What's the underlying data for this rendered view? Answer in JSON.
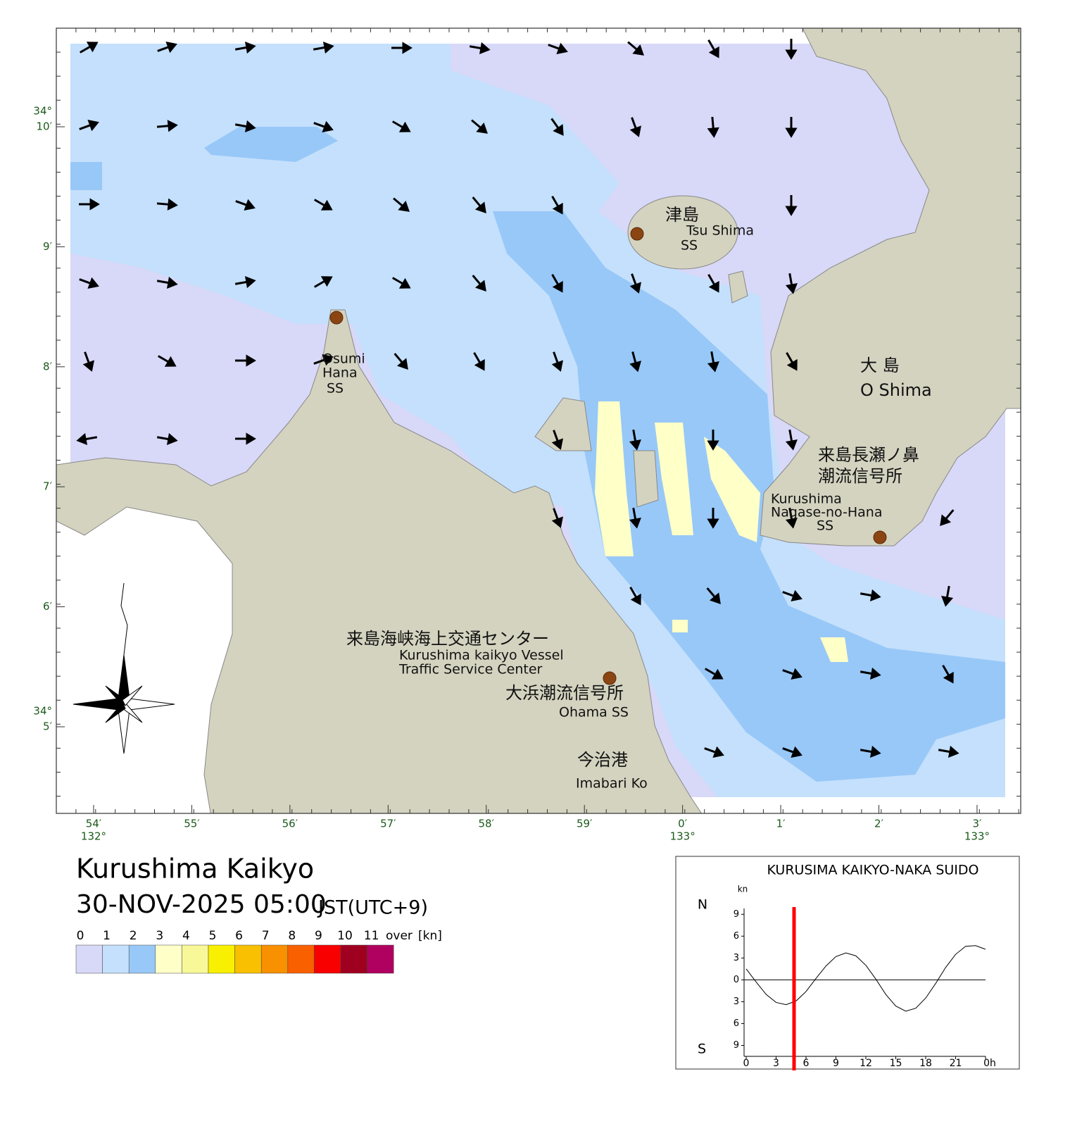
{
  "map": {
    "title": "Kurushima Kaikyo",
    "datetime": "30-NOV-2025 05:00",
    "timezone": "JST(UTC+9)",
    "lon_labels": [
      "54′",
      "55′",
      "56′",
      "57′",
      "58′",
      "59′",
      "0′",
      "1′",
      "2′",
      "3′"
    ],
    "lon_degree_labels": [
      "132°",
      null,
      null,
      null,
      null,
      null,
      "133°",
      null,
      null,
      "133°"
    ],
    "lat_labels": [
      "10′",
      "9′",
      "8′",
      "7′",
      "6′",
      "5′"
    ],
    "lat_degree_labels": [
      "34°",
      null,
      null,
      null,
      null,
      "34°"
    ],
    "places": [
      {
        "lines": [
          "津島",
          "Tsu Shima",
          "SS"
        ]
      },
      {
        "lines": [
          "Osumi",
          "Hana",
          "SS"
        ]
      },
      {
        "lines": [
          "大 島",
          "O Shima"
        ]
      },
      {
        "lines": [
          "来島長瀬ノ鼻",
          "潮流信号所",
          "Kurushima",
          "Nagase-no-Hana",
          "SS"
        ]
      },
      {
        "lines": [
          "来島海峡海上交通センター",
          "Kurushima kaikyo Vessel",
          "Traffic Service Center"
        ]
      },
      {
        "lines": [
          "大浜潮流信号所",
          "Ohama SS"
        ]
      },
      {
        "lines": [
          "今治港",
          "Imabari Ko"
        ]
      }
    ],
    "current_directions_deg": [
      [
        60,
        70,
        80,
        80,
        90,
        100,
        110,
        130,
        150,
        180,
        null,
        null
      ],
      [
        70,
        85,
        100,
        110,
        120,
        130,
        145,
        160,
        175,
        180,
        null,
        null
      ],
      [
        90,
        95,
        110,
        120,
        130,
        140,
        150,
        null,
        null,
        180,
        null,
        null
      ],
      [
        110,
        100,
        80,
        60,
        120,
        140,
        150,
        160,
        150,
        170,
        null,
        null
      ],
      [
        160,
        120,
        90,
        70,
        140,
        150,
        160,
        165,
        170,
        150,
        null,
        null
      ],
      [
        260,
        100,
        90,
        null,
        null,
        null,
        160,
        170,
        180,
        170,
        null,
        null
      ],
      [
        null,
        null,
        null,
        null,
        null,
        null,
        160,
        170,
        180,
        170,
        null,
        220
      ],
      [
        null,
        null,
        null,
        null,
        null,
        null,
        null,
        150,
        140,
        110,
        100,
        190
      ],
      [
        null,
        null,
        null,
        null,
        null,
        null,
        null,
        null,
        120,
        110,
        100,
        150
      ],
      [
        null,
        null,
        null,
        null,
        null,
        null,
        null,
        null,
        110,
        110,
        100,
        100
      ]
    ],
    "legend": {
      "ticks": [
        0,
        1,
        2,
        3,
        4,
        5,
        6,
        7,
        8,
        9,
        10,
        11
      ],
      "over_label": "over",
      "unit": "[kn]",
      "colors": [
        "#d8d8f8",
        "#c4e0fc",
        "#98c8f8",
        "#ffffc8",
        "#f8f898",
        "#f8f000",
        "#f8c000",
        "#f89000",
        "#f86000",
        "#f80000",
        "#a00020",
        "#b00060"
      ]
    }
  },
  "chart_data": {
    "type": "line",
    "title": "KURUSIMA KAIKYO-NAKA SUIDO",
    "y_unit": "kn",
    "north_label": "N",
    "south_label": "S",
    "x": [
      0,
      1,
      2,
      3,
      4,
      5,
      6,
      7,
      8,
      9,
      10,
      11,
      12,
      13,
      14,
      15,
      16,
      17,
      18,
      19,
      20,
      21,
      22,
      23,
      24
    ],
    "values": [
      1.5,
      -0.3,
      -2.0,
      -3.1,
      -3.4,
      -2.9,
      -1.6,
      0.2,
      1.9,
      3.2,
      3.7,
      3.3,
      2.0,
      0.1,
      -2.0,
      -3.6,
      -4.3,
      -3.9,
      -2.5,
      -0.5,
      1.7,
      3.5,
      4.6,
      4.7,
      4.2
    ],
    "color": "#000000",
    "current_time": 4.8,
    "current_time_color": "#ff0000",
    "xlim": [
      0,
      24
    ],
    "ylim": [
      -10.5,
      9.8
    ],
    "xticks": [
      0,
      3,
      6,
      9,
      12,
      15,
      18,
      21,
      {
        "value": 24,
        "label": "0h"
      }
    ],
    "yticks": [
      {
        "value": -9,
        "label": "9"
      },
      {
        "value": -6,
        "label": "6"
      },
      {
        "value": -3,
        "label": "3"
      },
      0,
      3,
      6,
      9
    ]
  }
}
